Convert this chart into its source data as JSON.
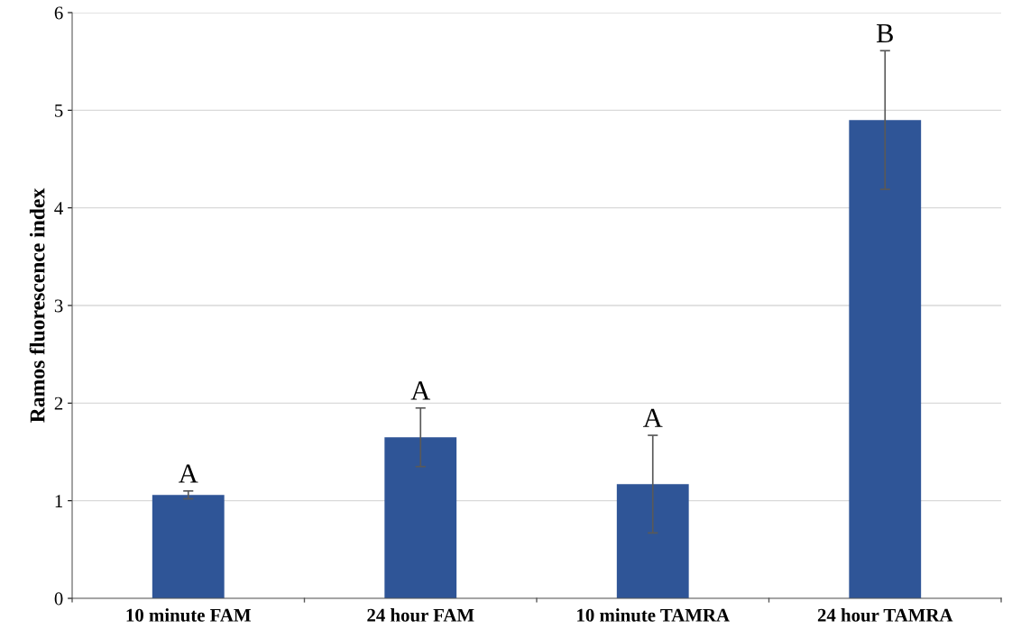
{
  "chart_data": {
    "type": "bar",
    "ylabel": "Ramos fluorescence index",
    "categories": [
      "10 minute FAM",
      "24 hour FAM",
      "10 minute TAMRA",
      "24 hour TAMRA"
    ],
    "values": [
      1.06,
      1.65,
      1.17,
      4.9
    ],
    "errors": [
      0.04,
      0.3,
      0.5,
      0.71
    ],
    "color": "#2f5597",
    "ylim": [
      0,
      6
    ],
    "yticks": [
      0,
      1,
      2,
      3,
      4,
      5,
      6
    ],
    "grid": "y",
    "annotations": [
      {
        "text": "A",
        "x": "10 minute FAM",
        "y": 1.1
      },
      {
        "text": "A",
        "x": "24 hour FAM",
        "y": 1.95
      },
      {
        "text": "A",
        "x": "10 minute TAMRA",
        "y": 1.67
      },
      {
        "text": "B",
        "x": "24 hour TAMRA",
        "y": 5.61
      }
    ]
  }
}
